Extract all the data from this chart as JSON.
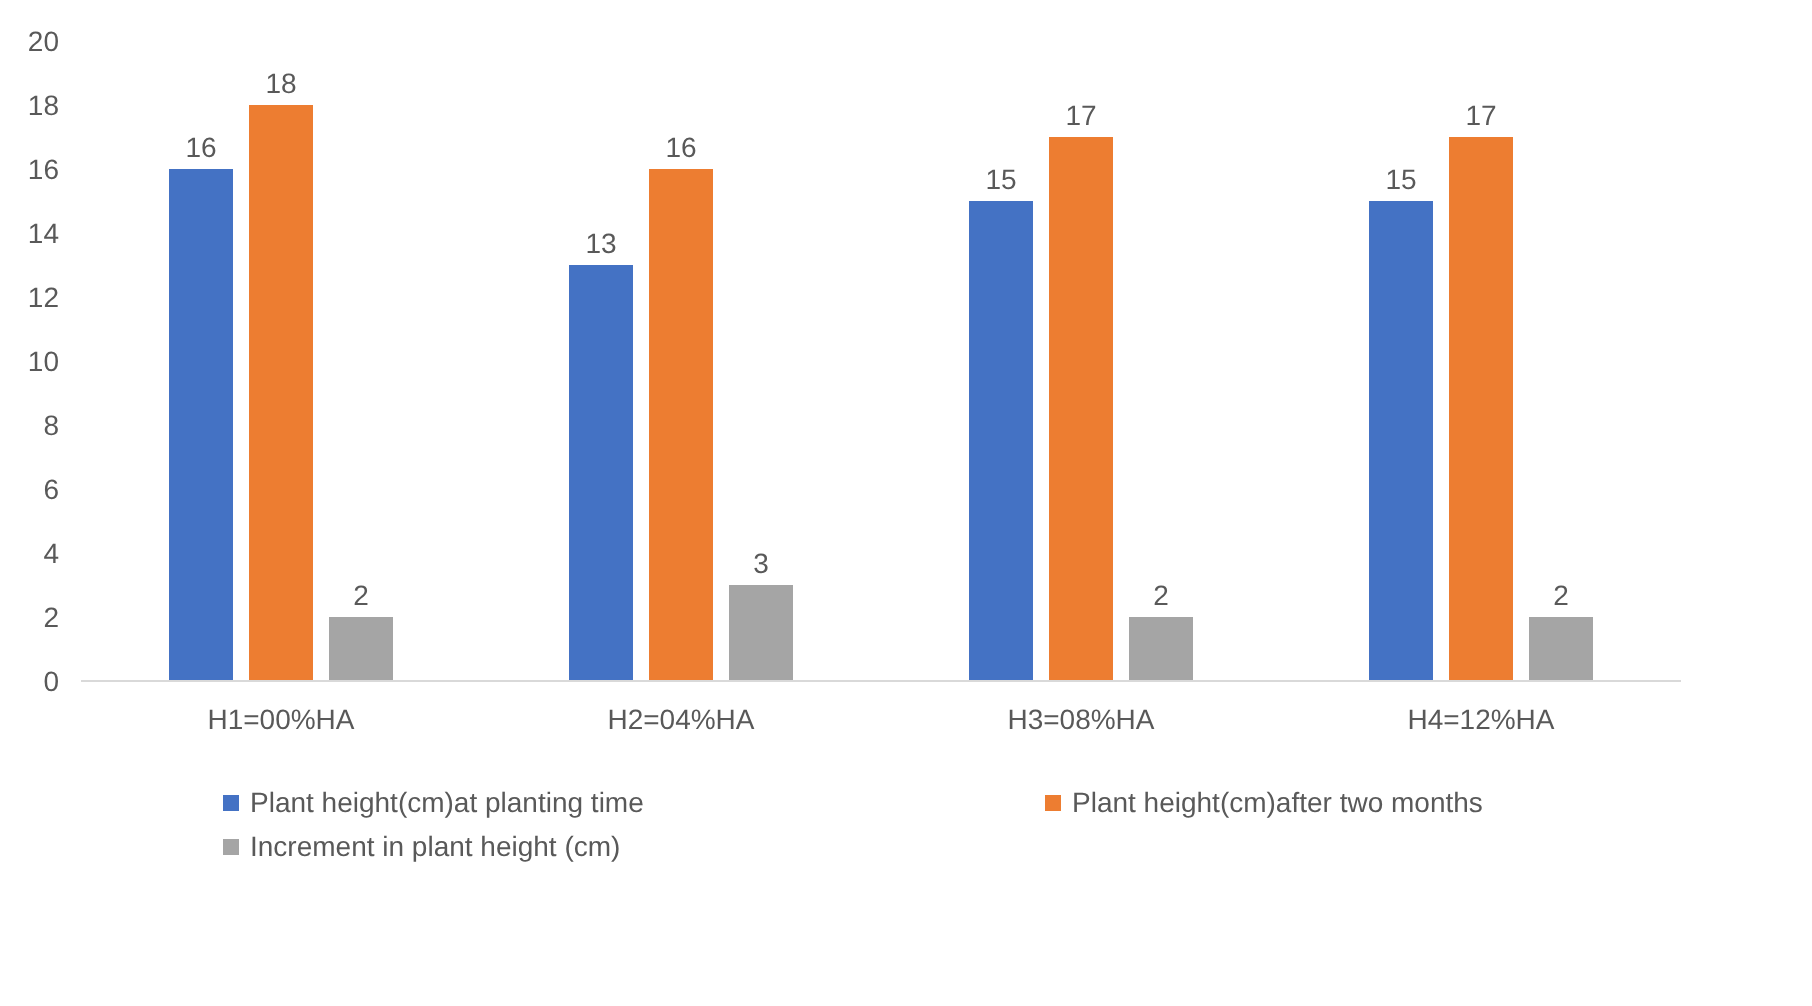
{
  "chart_data": {
    "type": "bar",
    "categories": [
      "H1=00%HA",
      "H2=04%HA",
      "H3=08%HA",
      "H4=12%HA"
    ],
    "series": [
      {
        "name": "Plant height(cm)at planting time",
        "color": "#4472c4",
        "values": [
          16,
          13,
          15,
          15
        ]
      },
      {
        "name": "Plant height(cm)after two months",
        "color": "#ed7d31",
        "values": [
          18,
          16,
          17,
          17
        ]
      },
      {
        "name": "Increment in plant height (cm)",
        "color": "#a5a5a5",
        "values": [
          2,
          3,
          2,
          2
        ]
      }
    ],
    "ylim": [
      0,
      20
    ],
    "yticks": [
      0,
      2,
      4,
      6,
      8,
      10,
      12,
      14,
      16,
      18,
      20
    ],
    "grid": false,
    "legend": "bottom",
    "data_labels": true
  }
}
